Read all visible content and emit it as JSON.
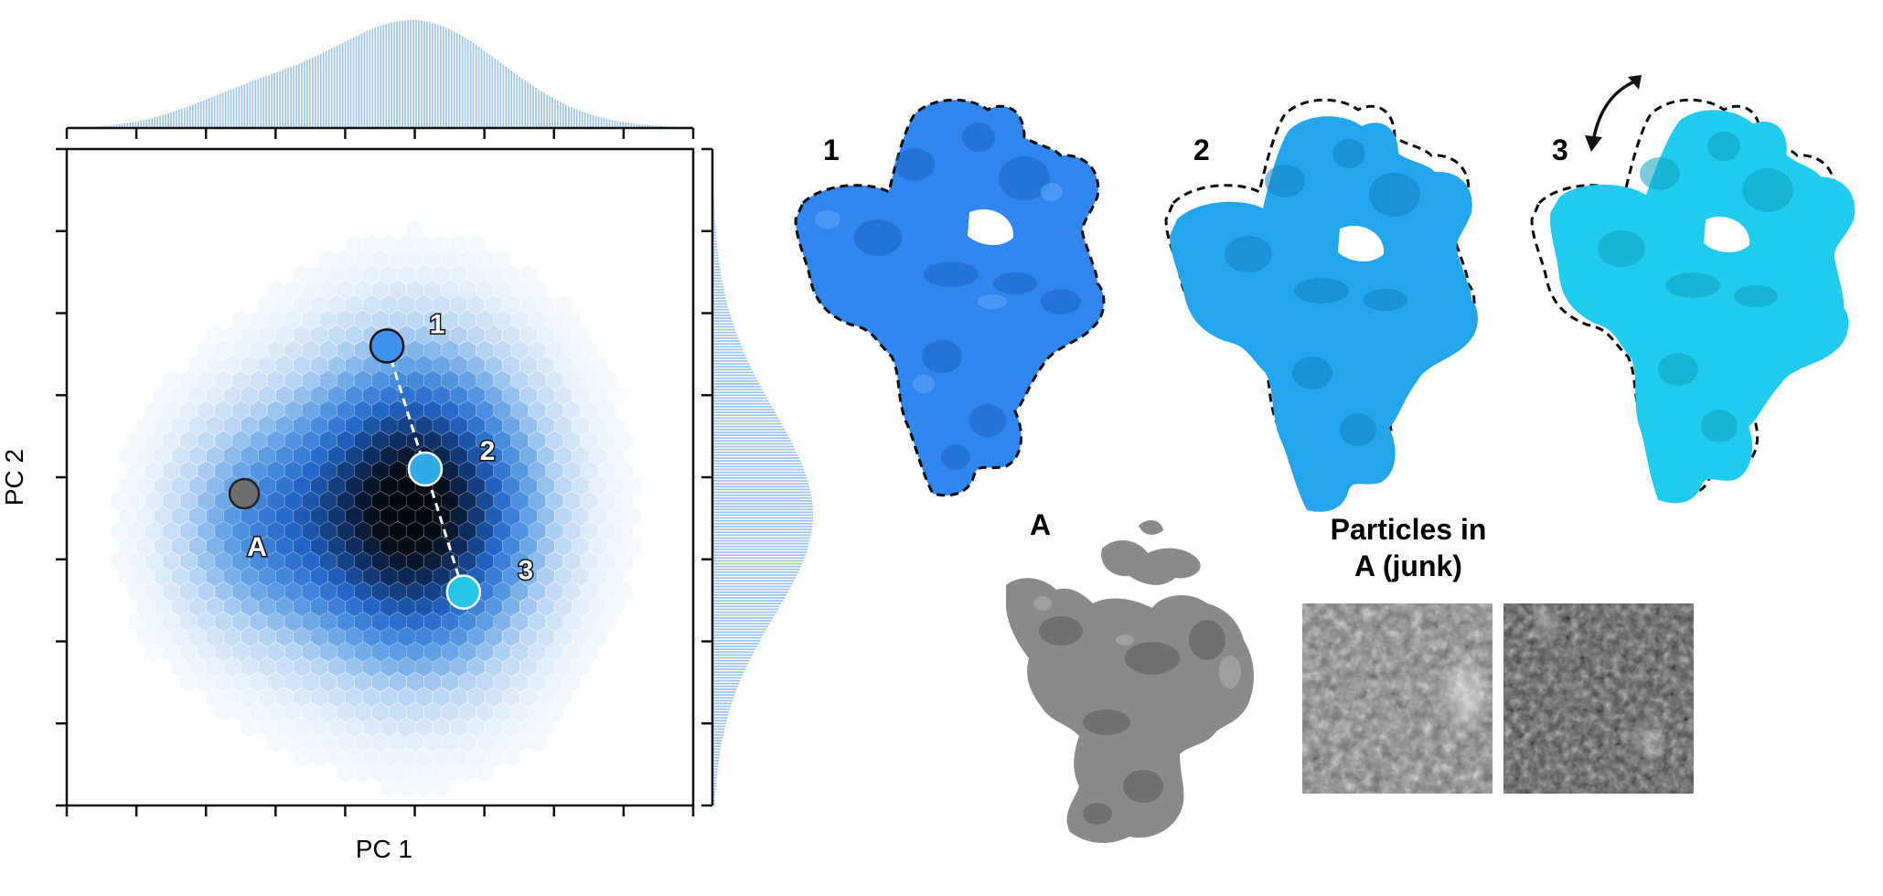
{
  "chart_data": {
    "type": "heatmap",
    "subtype": "hexbin-with-marginal-histograms",
    "xlabel": "PC 1",
    "ylabel": "PC 2",
    "title": "",
    "xlim": [
      0,
      9
    ],
    "ylim": [
      0,
      8
    ],
    "x_ticks": 10,
    "y_ticks": 9,
    "grid": false,
    "colormap": "white-to-blue-to-black",
    "density_modes": [
      {
        "x": 5.0,
        "y": 3.6,
        "weight": 1.0
      },
      {
        "x": 2.6,
        "y": 3.4,
        "weight": 0.35
      }
    ],
    "points": [
      {
        "label": "1",
        "x": 4.6,
        "y": 5.6,
        "color": "#3d92ec"
      },
      {
        "label": "2",
        "x": 5.15,
        "y": 4.1,
        "color": "#2eaaea"
      },
      {
        "label": "3",
        "x": 5.7,
        "y": 2.6,
        "color": "#25c6e8"
      },
      {
        "label": "A",
        "x": 2.55,
        "y": 3.8,
        "color": "#6f6f6f"
      }
    ],
    "trajectory": [
      "1",
      "2",
      "3"
    ]
  },
  "panels": {
    "volume_labels": [
      "1",
      "2",
      "3"
    ],
    "volume_colors": [
      "#2f86ee",
      "#24a6ee",
      "#1fcbee"
    ],
    "junk_label": "A",
    "junk_color": "#8a8a8a",
    "particles_title_line1": "Particles in",
    "particles_title_line2": "A (junk)"
  }
}
